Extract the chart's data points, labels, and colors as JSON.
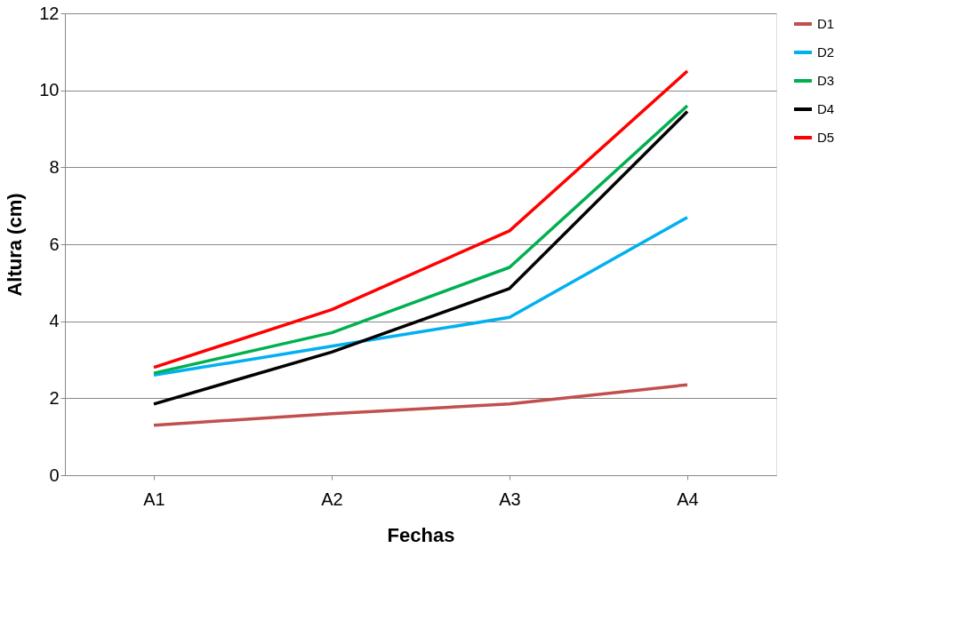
{
  "chart_data": {
    "type": "line",
    "xlabel": "Fechas",
    "ylabel": "Altura (cm)",
    "categories": [
      "A1",
      "A2",
      "A3",
      "A4"
    ],
    "series": [
      {
        "name": "D1",
        "color": "#c0504d",
        "values": [
          1.3,
          1.6,
          1.85,
          2.35
        ]
      },
      {
        "name": "D2",
        "color": "#00b0f0",
        "values": [
          2.6,
          3.35,
          4.1,
          6.7
        ]
      },
      {
        "name": "D3",
        "color": "#00b050",
        "values": [
          2.65,
          3.7,
          5.4,
          9.6
        ]
      },
      {
        "name": "D4",
        "color": "#000000",
        "values": [
          1.85,
          3.2,
          4.85,
          9.45
        ]
      },
      {
        "name": "D5",
        "color": "#ff0000",
        "values": [
          2.8,
          4.3,
          6.35,
          10.5
        ]
      }
    ],
    "ylim": [
      0,
      12
    ],
    "yticks": [
      0,
      2,
      4,
      6,
      8,
      10,
      12
    ],
    "grid": "y",
    "legend": "right",
    "marker": "none",
    "line_style": "solid"
  }
}
